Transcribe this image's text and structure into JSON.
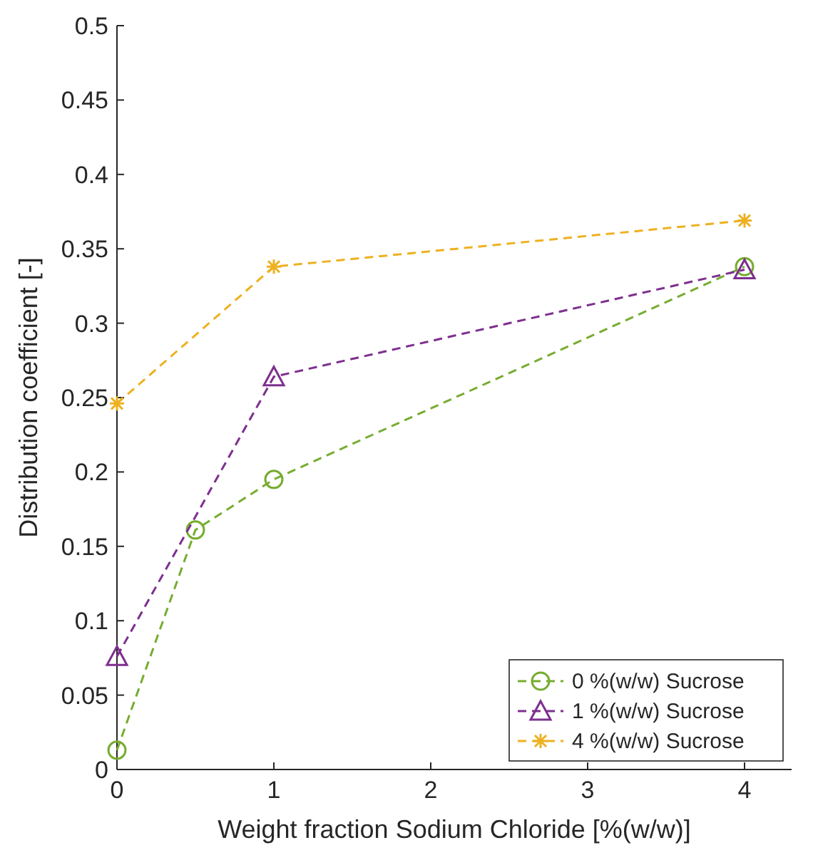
{
  "chart_data": {
    "type": "line",
    "xlabel": "Weight fraction Sodium Chloride [%(w/w)]",
    "ylabel": "Distribution coefficient [-]",
    "xlim": [
      0,
      4.3
    ],
    "xticks": [
      0,
      1,
      2,
      3,
      4
    ],
    "ylim": [
      0,
      0.5
    ],
    "yticks": [
      0,
      0.05,
      0.1,
      0.15,
      0.2,
      0.25,
      0.3,
      0.35,
      0.4,
      0.45,
      0.5
    ],
    "grid": false,
    "legend": "bottom right",
    "line_style": "dashed",
    "series": [
      {
        "name": "0 %(w/w) Sucrose",
        "color": "#77ac30",
        "marker": "circle",
        "x": [
          0,
          0.5,
          1,
          4
        ],
        "values": [
          0.013,
          0.161,
          0.195,
          0.338
        ]
      },
      {
        "name": "1 %(w/w) Sucrose",
        "color": "#7e2f8e",
        "marker": "triangle",
        "x": [
          0,
          1,
          4
        ],
        "values": [
          0.076,
          0.264,
          0.336
        ]
      },
      {
        "name": "4 %(w/w) Sucrose",
        "color": "#edb120",
        "marker": "cross",
        "x": [
          0,
          1,
          4
        ],
        "values": [
          0.246,
          0.338,
          0.369
        ]
      }
    ]
  }
}
